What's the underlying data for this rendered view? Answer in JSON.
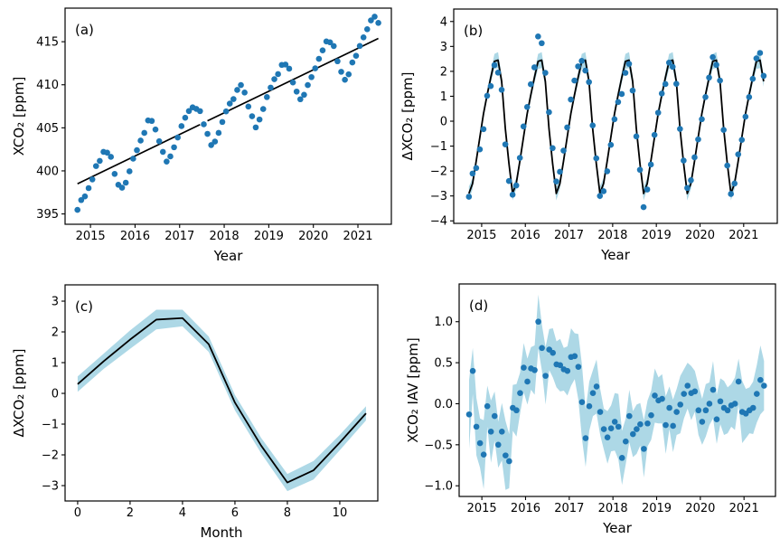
{
  "figure": {
    "background": "#ffffff",
    "description": "Four-panel CO2 time-series figure"
  },
  "chart_data": {
    "type": "multi-panel",
    "colors": {
      "marker": "#1f77b4",
      "line": "#000000",
      "band": "#add8e6",
      "text": "#000000"
    },
    "x_monthly": [
      2014.708,
      2014.792,
      2014.875,
      2014.958,
      2015.042,
      2015.125,
      2015.208,
      2015.292,
      2015.375,
      2015.458,
      2015.542,
      2015.625,
      2015.708,
      2015.792,
      2015.875,
      2015.958,
      2016.042,
      2016.125,
      2016.208,
      2016.292,
      2016.375,
      2016.458,
      2016.542,
      2016.625,
      2016.708,
      2016.792,
      2016.875,
      2016.958,
      2017.042,
      2017.125,
      2017.208,
      2017.292,
      2017.375,
      2017.458,
      2017.542,
      2017.625,
      2017.708,
      2017.792,
      2017.875,
      2017.958,
      2018.042,
      2018.125,
      2018.208,
      2018.292,
      2018.375,
      2018.458,
      2018.542,
      2018.625,
      2018.708,
      2018.792,
      2018.875,
      2018.958,
      2019.042,
      2019.125,
      2019.208,
      2019.292,
      2019.375,
      2019.458,
      2019.542,
      2019.625,
      2019.708,
      2019.792,
      2019.875,
      2019.958,
      2020.042,
      2020.125,
      2020.208,
      2020.292,
      2020.375,
      2020.458,
      2020.542,
      2020.625,
      2020.708,
      2020.792,
      2020.875,
      2020.958,
      2021.042,
      2021.125,
      2021.208,
      2021.292,
      2021.375,
      2021.458
    ],
    "panels": [
      {
        "id": "a",
        "panel_label": "(a)",
        "type": "scatter",
        "xlabel": "Year",
        "ylabel": "XCO₂ [ppm]",
        "xlim": [
          2014.43,
          2021.75
        ],
        "ylim": [
          393.8,
          418.9
        ],
        "xticks": [
          2015,
          2016,
          2017,
          2018,
          2019,
          2020,
          2021
        ],
        "xtick_labels": [
          "2015",
          "2016",
          "2017",
          "2018",
          "2019",
          "2020",
          "2021"
        ],
        "yticks": [
          395,
          400,
          405,
          410,
          415
        ],
        "ytick_labels": [
          "395",
          "400",
          "405",
          "410",
          "415"
        ],
        "use_shared_x": true,
        "scatter_y": [
          395.47,
          396.61,
          397.04,
          398.0,
          399.01,
          400.56,
          401.16,
          402.21,
          402.12,
          401.63,
          399.65,
          398.39,
          398.05,
          398.63,
          399.95,
          401.42,
          402.4,
          403.52,
          404.41,
          405.86,
          405.8,
          404.81,
          403.44,
          402.21,
          401.08,
          401.68,
          402.74,
          403.88,
          405.2,
          406.17,
          406.95,
          407.38,
          407.2,
          406.94,
          405.41,
          404.3,
          403.0,
          403.4,
          404.41,
          405.68,
          406.91,
          407.81,
          408.34,
          409.4,
          409.97,
          409.1,
          407.47,
          406.34,
          405.05,
          405.97,
          407.18,
          408.57,
          409.67,
          410.65,
          411.24,
          412.31,
          412.35,
          411.87,
          410.27,
          409.21,
          408.32,
          408.84,
          409.97,
          410.89,
          411.91,
          413.01,
          414.0,
          415.03,
          414.93,
          414.5,
          412.73,
          411.51,
          410.58,
          411.21,
          412.59,
          413.37,
          414.51,
          415.51,
          416.45,
          417.48,
          417.91,
          417.19
        ],
        "trend_segments": [
          [
            [
              2014.708,
              398.5
            ],
            [
              2017.458,
              405.38
            ]
          ],
          [
            [
              2017.625,
              405.81
            ],
            [
              2021.458,
              415.38
            ]
          ]
        ]
      },
      {
        "id": "b",
        "panel_label": "(b)",
        "type": "scatter+line+band",
        "xlabel": "Year",
        "ylabel": "ΔXCO₂ [ppm]",
        "xlim": [
          2014.36,
          2021.77
        ],
        "ylim": [
          -4.1,
          4.5
        ],
        "xticks": [
          2015,
          2016,
          2017,
          2018,
          2019,
          2020,
          2021
        ],
        "xtick_labels": [
          "2015",
          "2016",
          "2017",
          "2018",
          "2019",
          "2020",
          "2021"
        ],
        "yticks": [
          -4,
          -3,
          -2,
          -1,
          0,
          1,
          2,
          3,
          4
        ],
        "ytick_labels": [
          "−4",
          "−3",
          "−2",
          "−1",
          "0",
          "1",
          "2",
          "3",
          "4"
        ],
        "use_shared_x": true,
        "scatter_y": [
          -3.03,
          -2.1,
          -1.88,
          -1.13,
          -0.32,
          1.02,
          1.41,
          2.25,
          1.95,
          1.26,
          -0.93,
          -2.4,
          -2.95,
          -2.58,
          -1.47,
          -0.21,
          0.57,
          1.48,
          2.16,
          3.4,
          3.13,
          1.94,
          0.36,
          -1.08,
          -2.42,
          -2.03,
          -1.18,
          -0.25,
          0.87,
          1.63,
          2.2,
          2.42,
          2.03,
          1.57,
          -0.17,
          -1.49,
          -3.0,
          -2.81,
          -2.01,
          -0.95,
          0.08,
          0.77,
          1.09,
          1.94,
          2.3,
          1.23,
          -0.61,
          -1.95,
          -3.45,
          -2.74,
          -1.74,
          -0.55,
          0.34,
          1.11,
          1.49,
          2.35,
          2.18,
          1.5,
          -0.31,
          -1.58,
          -2.68,
          -2.37,
          -1.45,
          -0.73,
          0.08,
          0.97,
          1.75,
          2.57,
          2.26,
          1.63,
          -0.35,
          -1.78,
          -2.92,
          -2.5,
          -1.33,
          -0.75,
          0.18,
          0.97,
          1.7,
          2.52,
          2.74,
          1.82
        ],
        "line_y": [
          -2.9,
          -2.5,
          -1.6,
          -0.65,
          0.3,
          1.05,
          1.75,
          2.4,
          2.45,
          1.6,
          -0.3,
          -1.7,
          -2.9,
          -2.5,
          -1.6,
          -0.65,
          0.3,
          1.05,
          1.75,
          2.4,
          2.45,
          1.6,
          -0.3,
          -1.7,
          -2.9,
          -2.5,
          -1.6,
          -0.65,
          0.3,
          1.05,
          1.75,
          2.4,
          2.45,
          1.6,
          -0.3,
          -1.7,
          -2.9,
          -2.5,
          -1.6,
          -0.65,
          0.3,
          1.05,
          1.75,
          2.4,
          2.45,
          1.6,
          -0.3,
          -1.7,
          -2.9,
          -2.5,
          -1.6,
          -0.65,
          0.3,
          1.05,
          1.75,
          2.4,
          2.45,
          1.6,
          -0.3,
          -1.7,
          -2.9,
          -2.5,
          -1.6,
          -0.65,
          0.3,
          1.05,
          1.75,
          2.4,
          2.45,
          1.6,
          -0.3,
          -1.7,
          -2.9,
          -2.5,
          -1.6,
          -0.65,
          0.3,
          1.05,
          1.75,
          2.4,
          2.45,
          1.6
        ],
        "band_upper": [
          -2.62,
          -2.28,
          -1.42,
          -0.47,
          0.48,
          1.23,
          1.97,
          2.7,
          2.77,
          1.82,
          -0.12,
          -1.52,
          -2.62,
          -2.28,
          -1.42,
          -0.47,
          0.48,
          1.23,
          1.97,
          2.7,
          2.77,
          1.82,
          -0.12,
          -1.52,
          -2.62,
          -2.28,
          -1.42,
          -0.47,
          0.48,
          1.23,
          1.97,
          2.7,
          2.77,
          1.82,
          -0.12,
          -1.52,
          -2.62,
          -2.28,
          -1.42,
          -0.47,
          0.48,
          1.23,
          1.97,
          2.7,
          2.77,
          1.82,
          -0.12,
          -1.52,
          -2.62,
          -2.28,
          -1.42,
          -0.47,
          0.48,
          1.23,
          1.97,
          2.7,
          2.77,
          1.82,
          -0.12,
          -1.52,
          -2.62,
          -2.28,
          -1.42,
          -0.47,
          0.48,
          1.23,
          1.97,
          2.7,
          2.77,
          1.82,
          -0.12,
          -1.52,
          -2.62,
          -2.28,
          -1.42,
          -0.47,
          0.48,
          1.23,
          1.97,
          2.7,
          2.77,
          1.82
        ],
        "band_lower": [
          -3.18,
          -2.72,
          -1.78,
          -0.83,
          0.12,
          0.87,
          1.53,
          2.1,
          2.13,
          1.38,
          -0.48,
          -1.88,
          -3.18,
          -2.72,
          -1.78,
          -0.83,
          0.12,
          0.87,
          1.53,
          2.1,
          2.13,
          1.38,
          -0.48,
          -1.88,
          -3.18,
          -2.72,
          -1.78,
          -0.83,
          0.12,
          0.87,
          1.53,
          2.1,
          2.13,
          1.38,
          -0.48,
          -1.88,
          -3.18,
          -2.72,
          -1.78,
          -0.83,
          0.12,
          0.87,
          1.53,
          2.1,
          2.13,
          1.38,
          -0.48,
          -1.88,
          -3.18,
          -2.72,
          -1.78,
          -0.83,
          0.12,
          0.87,
          1.53,
          2.1,
          2.13,
          1.38,
          -0.48,
          -1.88,
          -3.18,
          -2.72,
          -1.78,
          -0.83,
          0.12,
          0.87,
          1.53,
          2.1,
          2.13,
          1.38,
          -0.48,
          -1.88,
          -3.18,
          -2.72,
          -1.78,
          -0.83,
          0.12,
          0.87,
          1.53,
          2.1,
          2.13,
          1.38
        ]
      },
      {
        "id": "c",
        "panel_label": "(c)",
        "type": "line+band",
        "xlabel": "Month",
        "ylabel": "ΔXCO₂ [ppm]",
        "xlim": [
          -0.48,
          11.45
        ],
        "ylim": [
          -3.5,
          3.53
        ],
        "xticks": [
          0,
          2,
          4,
          6,
          8,
          10
        ],
        "xtick_labels": [
          "0",
          "2",
          "4",
          "6",
          "8",
          "10"
        ],
        "yticks": [
          -3,
          -2,
          -1,
          0,
          1,
          2,
          3
        ],
        "ytick_labels": [
          "−3",
          "−2",
          "−1",
          "0",
          "1",
          "2",
          "3"
        ],
        "x": [
          0,
          1,
          2,
          3,
          4,
          5,
          6,
          7,
          8,
          9,
          10,
          11
        ],
        "line_y": [
          0.3,
          1.05,
          1.75,
          2.4,
          2.45,
          1.6,
          -0.3,
          -1.7,
          -2.9,
          -2.5,
          -1.6,
          -0.65
        ],
        "band_upper": [
          0.55,
          1.3,
          2.05,
          2.72,
          2.72,
          1.85,
          -0.05,
          -1.45,
          -2.62,
          -2.2,
          -1.35,
          -0.42
        ],
        "band_lower": [
          0.05,
          0.8,
          1.45,
          2.08,
          2.18,
          1.35,
          -0.55,
          -1.95,
          -3.18,
          -2.8,
          -1.85,
          -0.88
        ]
      },
      {
        "id": "d",
        "panel_label": "(d)",
        "type": "scatter+band",
        "xlabel": "Year",
        "ylabel": "XCO₂ IAV [ppm]",
        "xlim": [
          2014.48,
          2021.72
        ],
        "ylim": [
          -1.13,
          1.46
        ],
        "xticks": [
          2015,
          2016,
          2017,
          2018,
          2019,
          2020,
          2021
        ],
        "xtick_labels": [
          "2015",
          "2016",
          "2017",
          "2018",
          "2019",
          "2020",
          "2021"
        ],
        "yticks": [
          -1.0,
          -0.5,
          0.0,
          0.5,
          1.0
        ],
        "ytick_labels": [
          "−1.0",
          "−0.5",
          "0.0",
          "0.5",
          "1.0"
        ],
        "use_shared_x": true,
        "scatter_y": [
          -0.13,
          0.4,
          -0.28,
          -0.48,
          -0.62,
          -0.03,
          -0.34,
          -0.15,
          -0.5,
          -0.34,
          -0.63,
          -0.7,
          -0.05,
          -0.08,
          0.13,
          0.44,
          0.27,
          0.43,
          0.41,
          1.0,
          0.68,
          0.34,
          0.66,
          0.62,
          0.48,
          0.47,
          0.42,
          0.4,
          0.57,
          0.58,
          0.45,
          0.02,
          -0.42,
          -0.03,
          0.13,
          0.21,
          -0.1,
          -0.31,
          -0.41,
          -0.3,
          -0.22,
          -0.28,
          -0.66,
          -0.46,
          -0.15,
          -0.37,
          -0.31,
          -0.25,
          -0.55,
          -0.24,
          -0.14,
          0.1,
          0.04,
          0.06,
          -0.26,
          -0.05,
          -0.27,
          -0.1,
          -0.01,
          0.12,
          0.22,
          0.13,
          0.15,
          -0.08,
          -0.22,
          -0.08,
          0.0,
          0.17,
          -0.19,
          0.03,
          -0.05,
          -0.08,
          -0.02,
          0.0,
          0.27,
          -0.1,
          -0.12,
          -0.08,
          -0.05,
          0.12,
          0.29,
          0.22
        ],
        "band_upper": [
          0.29,
          0.68,
          0.07,
          -0.18,
          -0.2,
          0.22,
          0.04,
          0.15,
          -0.22,
          0.01,
          -0.21,
          -0.37,
          0.23,
          0.24,
          0.38,
          0.74,
          0.55,
          0.69,
          0.71,
          1.33,
          0.96,
          0.69,
          0.91,
          0.92,
          0.76,
          0.79,
          0.68,
          0.7,
          0.92,
          0.86,
          0.85,
          0.47,
          -0.07,
          0.27,
          0.41,
          0.54,
          0.18,
          -0.06,
          -0.09,
          -0.02,
          0.13,
          0.12,
          -0.33,
          -0.18,
          0.17,
          -0.09,
          -0.01,
          0.01,
          -0.2,
          0.04,
          0.16,
          0.43,
          0.32,
          0.36,
          0.09,
          0.21,
          0.05,
          0.18,
          0.34,
          0.42,
          0.5,
          0.46,
          0.4,
          0.22,
          0.06,
          0.24,
          0.26,
          0.52,
          0.11,
          0.31,
          0.28,
          0.2,
          0.24,
          0.32,
          0.55,
          0.28,
          0.18,
          0.2,
          0.27,
          0.47,
          0.71,
          0.52
        ],
        "band_lower": [
          -0.55,
          0.12,
          -0.63,
          -0.78,
          -1.04,
          -0.28,
          -0.72,
          -0.45,
          -0.78,
          -0.69,
          -1.05,
          -1.03,
          -0.33,
          -0.4,
          -0.12,
          0.14,
          -0.01,
          0.17,
          0.11,
          0.67,
          0.4,
          -0.01,
          0.41,
          0.32,
          0.2,
          0.15,
          0.16,
          0.1,
          0.22,
          0.3,
          0.05,
          -0.43,
          -0.77,
          -0.33,
          -0.15,
          -0.12,
          -0.38,
          -0.56,
          -0.73,
          -0.58,
          -0.57,
          -0.68,
          -0.99,
          -0.74,
          -0.47,
          -0.65,
          -0.61,
          -0.51,
          -0.9,
          -0.52,
          -0.44,
          -0.23,
          -0.24,
          -0.24,
          -0.61,
          -0.31,
          -0.59,
          -0.38,
          -0.36,
          -0.18,
          -0.06,
          -0.2,
          -0.1,
          -0.38,
          -0.5,
          -0.4,
          -0.26,
          -0.18,
          -0.49,
          -0.25,
          -0.38,
          -0.36,
          -0.28,
          -0.32,
          -0.01,
          -0.48,
          -0.42,
          -0.36,
          -0.37,
          -0.23,
          -0.13,
          -0.08
        ]
      }
    ]
  }
}
